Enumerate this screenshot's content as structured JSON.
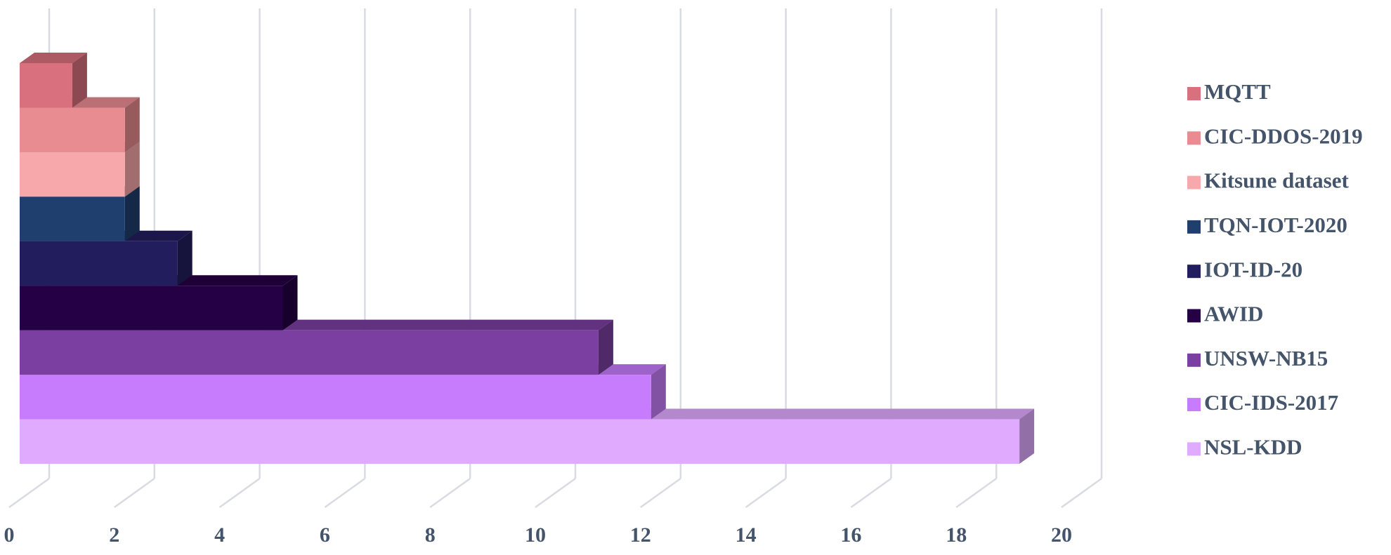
{
  "chart_data": {
    "type": "bar",
    "orientation": "horizontal",
    "categories": [
      "MQTT",
      "CIC-DDOS-2019",
      "Kitsune dataset",
      "TQN-IOT-2020",
      "IOT-ID-20",
      "AWID",
      "UNSW-NB15",
      "CIC-IDS-2017",
      "NSL-KDD"
    ],
    "values": [
      1,
      2,
      2,
      2,
      3,
      5,
      11,
      12,
      19
    ],
    "colors": [
      "#d9707d",
      "#e88c91",
      "#f7a8aa",
      "#1f3f6e",
      "#221d5c",
      "#250044",
      "#7a3fa0",
      "#c67cfc",
      "#e0aaff"
    ],
    "xlim": [
      0,
      20
    ],
    "xticks": [
      0,
      2,
      4,
      6,
      8,
      10,
      12,
      14,
      16,
      18,
      20
    ],
    "grid": true,
    "legend": "right"
  }
}
